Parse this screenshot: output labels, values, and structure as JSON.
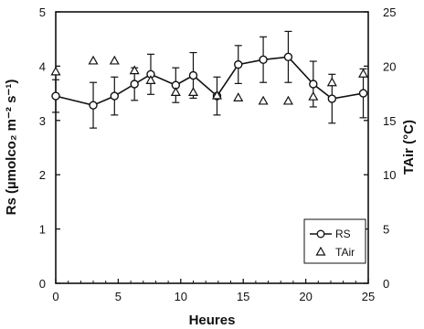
{
  "chart_data": {
    "type": "line",
    "xlabel": "Heures",
    "ylabel": "Rs (µmolco₂ m⁻² s⁻¹)",
    "y2label": "TAir (°C)",
    "xlim": [
      0,
      25
    ],
    "ylim": [
      0,
      5
    ],
    "y2lim": [
      0,
      25
    ],
    "x_ticks": [
      0,
      5,
      10,
      15,
      20,
      25
    ],
    "y_ticks": [
      0,
      1,
      2,
      3,
      4,
      5
    ],
    "y2_ticks": [
      0,
      5,
      10,
      15,
      20,
      25
    ],
    "grid": false,
    "legend_position": "bottom-right",
    "series": [
      {
        "name": "RS",
        "axis": "left",
        "marker": "circle",
        "connected": true,
        "x": [
          0,
          3,
          4.7,
          6.3,
          7.6,
          9.6,
          11.0,
          12.9,
          14.6,
          16.6,
          18.6,
          20.6,
          22.1,
          24.6
        ],
        "values": [
          3.45,
          3.28,
          3.45,
          3.67,
          3.85,
          3.65,
          3.83,
          3.45,
          4.03,
          4.12,
          4.17,
          3.67,
          3.4,
          3.5
        ],
        "errors": [
          0.3,
          0.42,
          0.35,
          0.3,
          0.37,
          0.32,
          0.42,
          0.35,
          0.35,
          0.42,
          0.47,
          0.42,
          0.45,
          0.45
        ]
      },
      {
        "name": "TAir",
        "axis": "right",
        "marker": "triangle",
        "connected": false,
        "x": [
          0,
          3,
          4.7,
          6.3,
          7.6,
          9.6,
          11.0,
          12.9,
          14.6,
          16.6,
          18.6,
          20.6,
          22.1,
          24.6
        ],
        "values": [
          19.5,
          20.5,
          20.5,
          19.6,
          18.7,
          17.6,
          17.6,
          17.3,
          17.1,
          16.8,
          16.8,
          17.2,
          18.5,
          19.3
        ]
      }
    ]
  }
}
